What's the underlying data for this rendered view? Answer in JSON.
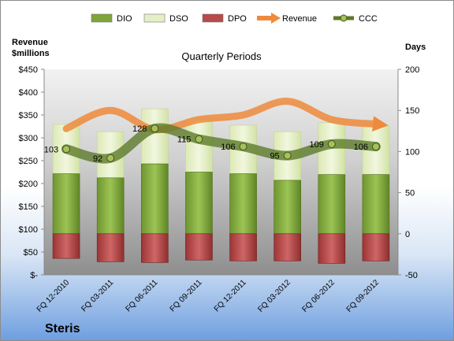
{
  "chart_data": {
    "type": "bar",
    "title": "Quarterly Periods",
    "company": "Steris",
    "ylabel_left_line1": "Revenue",
    "ylabel_left_line2": "$millions",
    "ylabel_right": "Days",
    "categories": [
      "FQ 12-2010",
      "FQ 03-2011",
      "FQ 06-2011",
      "FQ 09-2011",
      "FQ 12-2011",
      "FQ 03-2012",
      "FQ 06-2012",
      "FQ 09-2012"
    ],
    "left_axis": {
      "ylim": [
        0,
        450
      ],
      "ticks": [
        0,
        50,
        100,
        150,
        200,
        250,
        300,
        350,
        400,
        450
      ],
      "tick_labels": [
        "$-",
        "$50",
        "$100",
        "$150",
        "$200",
        "$250",
        "$300",
        "$350",
        "$400",
        "$450"
      ]
    },
    "right_axis": {
      "ylim": [
        -50,
        200
      ],
      "ticks": [
        -50,
        0,
        50,
        100,
        150,
        200
      ],
      "tick_labels": [
        "-50",
        "0",
        "50",
        "100",
        "150",
        "200"
      ]
    },
    "series": [
      {
        "name": "DIO",
        "kind": "bar",
        "axis": "right",
        "color": "#7ea43a",
        "values": [
          73,
          68,
          85,
          75,
          73,
          65,
          72,
          72
        ]
      },
      {
        "name": "DSO",
        "kind": "bar",
        "axis": "right",
        "color": "#e3efc6",
        "values": [
          60,
          56,
          67,
          64,
          59,
          59,
          63,
          59
        ]
      },
      {
        "name": "DPO",
        "kind": "bar",
        "axis": "right",
        "color": "#b84a4a",
        "values": [
          -30,
          -34,
          -35,
          -32,
          -33,
          -33,
          -36,
          -33
        ]
      },
      {
        "name": "Revenue",
        "kind": "line",
        "axis": "left",
        "color": "#ee8a3c",
        "values": [
          320,
          360,
          318,
          340,
          350,
          380,
          340,
          330
        ]
      },
      {
        "name": "CCC",
        "kind": "line",
        "axis": "right",
        "color": "#5d7a2a",
        "values": [
          103,
          92,
          128,
          115,
          106,
          95,
          109,
          106
        ],
        "data_labels": [
          "103",
          "92",
          "128",
          "115",
          "106",
          "95",
          "109",
          "106"
        ]
      }
    ],
    "legend": {
      "placement": "top",
      "items": [
        {
          "name": "DIO",
          "color": "#7ea43a",
          "symbol": "bar"
        },
        {
          "name": "DSO",
          "color": "#e3efc6",
          "symbol": "bar"
        },
        {
          "name": "DPO",
          "color": "#b84a4a",
          "symbol": "bar"
        },
        {
          "name": "Revenue",
          "color": "#ee8a3c",
          "symbol": "arrow"
        },
        {
          "name": "CCC",
          "color": "#5d7a2a",
          "symbol": "line"
        }
      ]
    },
    "grid": false
  }
}
